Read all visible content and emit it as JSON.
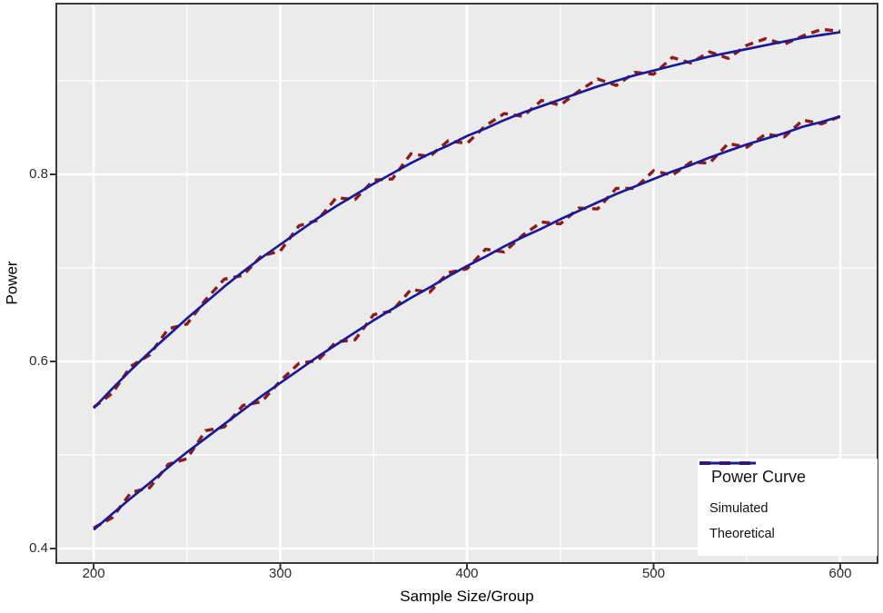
{
  "chart_data": {
    "type": "line",
    "title": "",
    "xlabel": "Sample Size/Group",
    "ylabel": "Power",
    "x": [
      200,
      210,
      220,
      230,
      240,
      250,
      260,
      270,
      280,
      290,
      300,
      310,
      320,
      330,
      340,
      350,
      360,
      370,
      380,
      390,
      400,
      410,
      420,
      430,
      440,
      450,
      460,
      470,
      480,
      490,
      500,
      510,
      520,
      530,
      540,
      550,
      560,
      570,
      580,
      590,
      600
    ],
    "series": [
      {
        "name": "Simulated",
        "curve": "upper",
        "style": "dashed",
        "color": "#8E1B1B",
        "values": [
          0.551,
          0.566,
          0.595,
          0.607,
          0.635,
          0.64,
          0.666,
          0.688,
          0.692,
          0.713,
          0.718,
          0.745,
          0.751,
          0.775,
          0.773,
          0.794,
          0.795,
          0.822,
          0.819,
          0.836,
          0.833,
          0.852,
          0.865,
          0.862,
          0.879,
          0.874,
          0.889,
          0.902,
          0.895,
          0.909,
          0.907,
          0.925,
          0.919,
          0.931,
          0.924,
          0.938,
          0.945,
          0.939,
          0.948,
          0.955,
          0.953
        ]
      },
      {
        "name": "Theoretical",
        "curve": "upper",
        "style": "solid",
        "color": "#1A1A94",
        "values": [
          0.55,
          0.571,
          0.591,
          0.61,
          0.628,
          0.646,
          0.663,
          0.68,
          0.696,
          0.711,
          0.725,
          0.739,
          0.753,
          0.766,
          0.778,
          0.79,
          0.801,
          0.812,
          0.822,
          0.831,
          0.841,
          0.849,
          0.858,
          0.866,
          0.873,
          0.88,
          0.887,
          0.894,
          0.9,
          0.906,
          0.911,
          0.916,
          0.921,
          0.926,
          0.93,
          0.934,
          0.938,
          0.942,
          0.946,
          0.949,
          0.952
        ]
      },
      {
        "name": "Simulated",
        "curve": "lower",
        "style": "dashed",
        "color": "#8E1B1B",
        "values": [
          0.422,
          0.433,
          0.46,
          0.465,
          0.49,
          0.496,
          0.526,
          0.53,
          0.553,
          0.557,
          0.579,
          0.598,
          0.601,
          0.621,
          0.623,
          0.65,
          0.654,
          0.677,
          0.674,
          0.695,
          0.699,
          0.72,
          0.717,
          0.735,
          0.749,
          0.747,
          0.764,
          0.763,
          0.785,
          0.785,
          0.804,
          0.799,
          0.813,
          0.812,
          0.833,
          0.829,
          0.843,
          0.84,
          0.858,
          0.854,
          0.862
        ]
      },
      {
        "name": "Theoretical",
        "curve": "lower",
        "style": "solid",
        "color": "#1A1A94",
        "values": [
          0.42,
          0.437,
          0.454,
          0.47,
          0.487,
          0.503,
          0.518,
          0.533,
          0.548,
          0.563,
          0.577,
          0.591,
          0.605,
          0.618,
          0.631,
          0.644,
          0.656,
          0.668,
          0.679,
          0.691,
          0.702,
          0.712,
          0.723,
          0.733,
          0.742,
          0.752,
          0.761,
          0.77,
          0.779,
          0.787,
          0.795,
          0.803,
          0.81,
          0.818,
          0.825,
          0.832,
          0.838,
          0.844,
          0.851,
          0.856,
          0.862
        ]
      }
    ],
    "axes": {
      "x_domain": [
        180,
        620
      ],
      "y_domain": [
        0.3845,
        0.9825
      ],
      "x_major": [
        200,
        300,
        400,
        500,
        600
      ],
      "x_minor": [
        250,
        350,
        450,
        550
      ],
      "y_major": [
        0.4,
        0.6,
        0.8
      ],
      "y_minor": [
        0.5,
        0.7,
        0.9
      ],
      "x_tick_labels": [
        "200",
        "300",
        "400",
        "500",
        "600"
      ],
      "y_tick_labels": [
        "0.4",
        "0.6",
        "0.8"
      ],
      "grid": "on"
    },
    "legend": {
      "title": "Power Curve",
      "position": "bottom-right",
      "entries": [
        {
          "label": "Simulated",
          "style": "dashed",
          "color": "#8E1B1B"
        },
        {
          "label": "Theoretical",
          "style": "solid",
          "color": "#1A1A94"
        }
      ]
    },
    "colors": {
      "panel_bg": "#EBEBEB",
      "grid": "#FFFFFF",
      "panel_border": "#3C3C3C",
      "tick": "#333333",
      "tick_text": "#2B2B2B",
      "axis_title_text": "#000000"
    }
  }
}
